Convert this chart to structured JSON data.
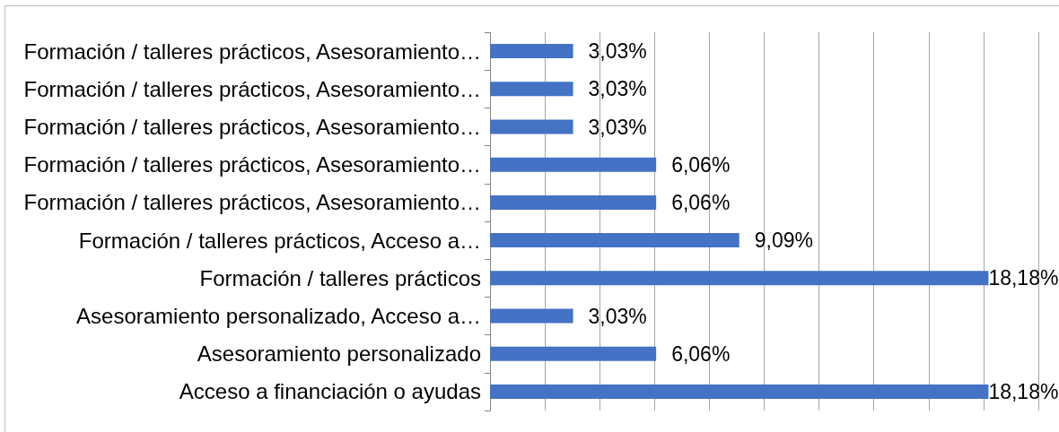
{
  "chart_data": {
    "type": "bar",
    "orientation": "horizontal",
    "categories": [
      "Formación / talleres prácticos, Asesoramiento…",
      "Formación / talleres prácticos, Asesoramiento…",
      "Formación / talleres prácticos, Asesoramiento…",
      "Formación / talleres prácticos, Asesoramiento…",
      "Formación / talleres prácticos, Asesoramiento…",
      "Formación / talleres prácticos, Acceso a…",
      "Formación / talleres prácticos",
      "Asesoramiento personalizado, Acceso a…",
      "Asesoramiento personalizado",
      "Acceso a financiación o ayudas"
    ],
    "values": [
      3.03,
      3.03,
      3.03,
      6.06,
      6.06,
      9.09,
      18.18,
      3.03,
      6.06,
      18.18
    ],
    "value_labels": [
      "3,03%",
      "3,03%",
      "3,03%",
      "6,06%",
      "6,06%",
      "9,09%",
      "18,18%",
      "3,03%",
      "6,06%",
      "18,18%"
    ],
    "color": "#4472c4",
    "xlim": [
      0,
      20
    ],
    "xticks": [
      {
        "value": 0,
        "label": null
      },
      {
        "value": 2,
        "label": null
      },
      {
        "value": 4,
        "label": null
      },
      {
        "value": 6,
        "label": null
      },
      {
        "value": 8,
        "label": null
      },
      {
        "value": 10,
        "label": null
      },
      {
        "value": 12,
        "label": null
      },
      {
        "value": 14,
        "label": null
      },
      {
        "value": 16,
        "label": null
      },
      {
        "value": 18,
        "label": null
      },
      {
        "value": 20,
        "label": null
      }
    ],
    "grid": "x",
    "tick_labels": "y"
  }
}
